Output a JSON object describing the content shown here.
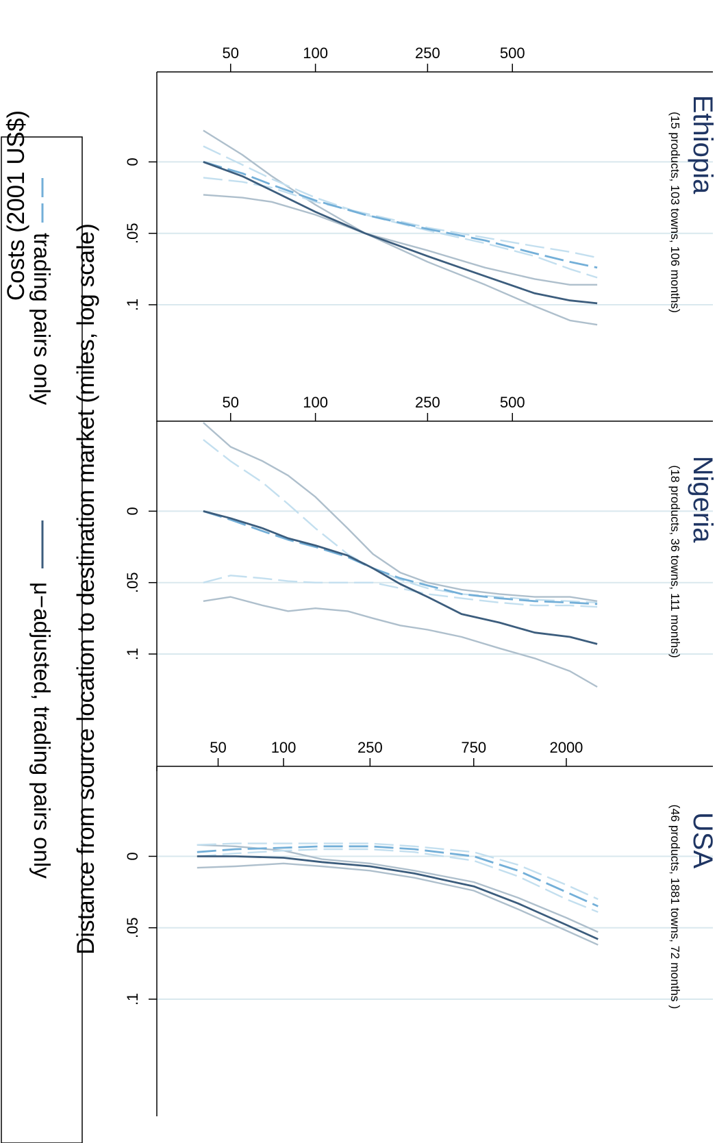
{
  "chart_data": {
    "type": "line",
    "orientation": "rotated-90-clockwise",
    "ylabel": "Costs (2001 US$)",
    "xlabel": "Distance from source location to destination market (miles, log scale)",
    "x_scale": "log",
    "y_ticks": [
      "0",
      ".05",
      ".1"
    ],
    "y_tick_values": [
      0,
      0.05,
      0.1
    ],
    "ylim": [
      -0.063,
      0.135
    ],
    "grid": true,
    "legend": {
      "placement": "bottom",
      "entries": [
        {
          "label": "trading pairs only",
          "series": "trading_pairs"
        },
        {
          "label": "μ−adjusted, trading pairs only",
          "series": "mu_adjusted"
        }
      ]
    },
    "colors": {
      "mu_adjusted": "#3c5d7d",
      "mu_adjusted_ci": "#aebfcc",
      "trading_pairs": "#73afd8",
      "trading_pairs_ci": "#c3dfef",
      "grid": "#d9e8ee",
      "title": "#1f3563"
    },
    "panels": [
      {
        "title": "Ethiopia",
        "subtitle": "(15 products, 103 towns, 106 months)",
        "x_ticks": [
          "50",
          "100",
          "250",
          "500"
        ],
        "x_tick_values": [
          50,
          100,
          250,
          500
        ],
        "xlim": [
          32,
          1300
        ],
        "series": [
          {
            "key": "mu_adjusted",
            "style": "solid",
            "x": [
              40,
              55,
              70,
              100,
              150,
              250,
              400,
              600,
              800,
              1000
            ],
            "y": [
              0.0,
              0.01,
              0.02,
              0.035,
              0.05,
              0.066,
              0.08,
              0.092,
              0.097,
              0.099
            ]
          },
          {
            "key": "mu_adjusted_ci_upper",
            "style": "solid",
            "x": [
              40,
              55,
              70,
              100,
              150,
              250,
              400,
              600,
              800,
              1000
            ],
            "y": [
              -0.022,
              -0.005,
              0.01,
              0.03,
              0.05,
              0.07,
              0.086,
              0.101,
              0.111,
              0.114
            ]
          },
          {
            "key": "mu_adjusted_ci_lower",
            "style": "solid",
            "x": [
              40,
              55,
              70,
              100,
              150,
              250,
              400,
              600,
              800,
              1000
            ],
            "y": [
              0.023,
              0.025,
              0.028,
              0.037,
              0.05,
              0.062,
              0.074,
              0.082,
              0.086,
              0.086
            ]
          },
          {
            "key": "trading_pairs",
            "style": "dashed",
            "x": [
              40,
              55,
              70,
              100,
              150,
              250,
              400,
              600,
              800,
              1000
            ],
            "y": [
              0.0,
              0.008,
              0.016,
              0.027,
              0.037,
              0.047,
              0.055,
              0.064,
              0.07,
              0.074
            ]
          },
          {
            "key": "trading_pairs_ci_upper",
            "style": "dashed",
            "x": [
              40,
              55,
              70,
              100,
              150,
              250,
              400,
              600,
              800,
              1000
            ],
            "y": [
              -0.011,
              0.002,
              0.012,
              0.025,
              0.037,
              0.048,
              0.057,
              0.066,
              0.075,
              0.081
            ]
          },
          {
            "key": "trading_pairs_ci_lower",
            "style": "dashed",
            "x": [
              40,
              55,
              70,
              100,
              150,
              250,
              400,
              600,
              800,
              1000
            ],
            "y": [
              0.011,
              0.014,
              0.018,
              0.028,
              0.036,
              0.046,
              0.053,
              0.059,
              0.063,
              0.067
            ]
          }
        ]
      },
      {
        "title": "Nigeria",
        "subtitle": "(18 products, 36 towns, 111 months)",
        "x_ticks": [
          "50",
          "100",
          "250",
          "500"
        ],
        "x_tick_values": [
          50,
          100,
          250,
          500
        ],
        "xlim": [
          32,
          1300
        ],
        "series": [
          {
            "key": "mu_adjusted",
            "style": "solid",
            "x": [
              40,
              50,
              65,
              80,
              100,
              130,
              160,
              200,
              250,
              330,
              450,
              600,
              800,
              1000
            ],
            "y": [
              0.0,
              0.005,
              0.012,
              0.019,
              0.024,
              0.031,
              0.04,
              0.051,
              0.06,
              0.072,
              0.078,
              0.085,
              0.088,
              0.093
            ]
          },
          {
            "key": "mu_adjusted_ci_upper",
            "style": "solid",
            "x": [
              40,
              50,
              65,
              80,
              100,
              130,
              160,
              200,
              250,
              330,
              450,
              600,
              800,
              1000
            ],
            "y": [
              -0.062,
              -0.045,
              -0.035,
              -0.025,
              -0.01,
              0.012,
              0.03,
              0.043,
              0.05,
              0.055,
              0.058,
              0.06,
              0.06,
              0.063
            ]
          },
          {
            "key": "mu_adjusted_ci_lower",
            "style": "solid",
            "x": [
              40,
              50,
              65,
              80,
              100,
              130,
              160,
              200,
              250,
              330,
              450,
              600,
              800,
              1000
            ],
            "y": [
              0.063,
              0.06,
              0.066,
              0.07,
              0.068,
              0.07,
              0.075,
              0.08,
              0.083,
              0.088,
              0.096,
              0.103,
              0.112,
              0.123
            ]
          },
          {
            "key": "trading_pairs",
            "style": "dashed",
            "x": [
              40,
              50,
              65,
              80,
              100,
              130,
              160,
              200,
              250,
              330,
              450,
              600,
              800,
              1000
            ],
            "y": [
              0.0,
              0.006,
              0.014,
              0.02,
              0.025,
              0.032,
              0.04,
              0.047,
              0.052,
              0.058,
              0.061,
              0.063,
              0.064,
              0.065
            ]
          },
          {
            "key": "trading_pairs_ci_upper",
            "style": "dashed",
            "x": [
              40,
              50,
              65,
              80,
              100,
              130,
              160,
              200,
              250,
              330,
              450,
              600,
              800,
              1000
            ],
            "y": [
              -0.05,
              -0.035,
              -0.02,
              -0.005,
              0.012,
              0.03,
              0.04,
              0.048,
              0.054,
              0.058,
              0.06,
              0.062,
              0.063,
              0.064
            ]
          },
          {
            "key": "trading_pairs_ci_lower",
            "style": "dashed",
            "x": [
              40,
              50,
              65,
              80,
              100,
              130,
              160,
              200,
              250,
              330,
              450,
              600,
              800,
              1000
            ],
            "y": [
              0.05,
              0.045,
              0.047,
              0.049,
              0.05,
              0.05,
              0.05,
              0.054,
              0.058,
              0.061,
              0.064,
              0.066,
              0.066,
              0.067
            ]
          }
        ]
      },
      {
        "title": "USA",
        "subtitle": "(46 products, 1881 towns, 72 months )",
        "x_ticks": [
          "50",
          "100",
          "250",
          "750",
          "2000"
        ],
        "x_tick_values": [
          50,
          100,
          250,
          750,
          2000
        ],
        "xlim": [
          32,
          3900
        ],
        "series": [
          {
            "key": "mu_adjusted",
            "style": "solid",
            "x": [
              40,
              60,
              100,
              150,
              250,
              400,
              750,
              1200,
              2000,
              2800
            ],
            "y": [
              0.0,
              0.0,
              0.001,
              0.004,
              0.007,
              0.012,
              0.021,
              0.033,
              0.048,
              0.058
            ]
          },
          {
            "key": "mu_adjusted_ci_upper",
            "style": "solid",
            "x": [
              40,
              60,
              100,
              150,
              250,
              400,
              750,
              1200,
              2000,
              2800
            ],
            "y": [
              0.008,
              0.007,
              0.005,
              0.007,
              0.01,
              0.015,
              0.024,
              0.037,
              0.052,
              0.062
            ]
          },
          {
            "key": "mu_adjusted_ci_lower",
            "style": "solid",
            "x": [
              40,
              60,
              100,
              150,
              250,
              400,
              750,
              1200,
              2000,
              2800
            ],
            "y": [
              -0.008,
              -0.007,
              -0.004,
              0.002,
              0.005,
              0.01,
              0.018,
              0.029,
              0.043,
              0.053
            ]
          },
          {
            "key": "trading_pairs",
            "style": "dashed",
            "x": [
              40,
              60,
              100,
              150,
              250,
              400,
              750,
              1200,
              2000,
              2800
            ],
            "y": [
              -0.003,
              -0.005,
              -0.006,
              -0.007,
              -0.007,
              -0.005,
              0.0,
              0.01,
              0.025,
              0.035
            ]
          },
          {
            "key": "trading_pairs_ci_upper",
            "style": "dashed",
            "x": [
              40,
              60,
              100,
              150,
              250,
              400,
              750,
              1200,
              2000,
              2800
            ],
            "y": [
              0.0,
              -0.002,
              -0.004,
              -0.005,
              -0.005,
              -0.003,
              0.003,
              0.014,
              0.03,
              0.039
            ]
          },
          {
            "key": "trading_pairs_ci_lower",
            "style": "dashed",
            "x": [
              40,
              60,
              100,
              150,
              250,
              400,
              750,
              1200,
              2000,
              2800
            ],
            "y": [
              -0.008,
              -0.009,
              -0.009,
              -0.009,
              -0.009,
              -0.007,
              -0.003,
              0.006,
              0.02,
              0.03
            ]
          }
        ]
      }
    ]
  }
}
